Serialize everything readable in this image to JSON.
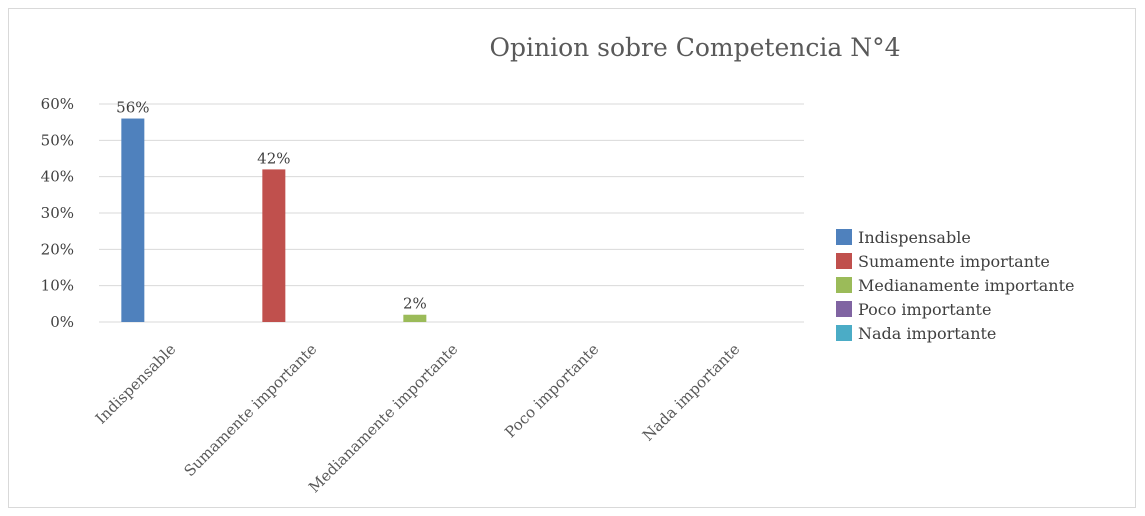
{
  "chart_data": {
    "type": "bar",
    "title": "Opinion sobre Competencia N°4",
    "categories": [
      "Indispensable",
      "Sumamente importante",
      "Medianamente importante",
      "Poco importante",
      "Nada importante"
    ],
    "values": [
      56,
      42,
      2,
      0,
      0
    ],
    "data_labels": [
      "56%",
      "42%",
      "2%",
      "",
      ""
    ],
    "colors": [
      "#4f81bd",
      "#c0504d",
      "#9bbb59",
      "#8064a2",
      "#4bacc6"
    ],
    "ylim": [
      0,
      60
    ],
    "yticks": [
      0,
      10,
      20,
      30,
      40,
      50,
      60
    ],
    "ytick_labels": [
      "0%",
      "10%",
      "20%",
      "30%",
      "40%",
      "50%",
      "60%"
    ],
    "grid": true,
    "legend_position": "right",
    "legend": [
      "Indispensable",
      "Sumamente importante",
      "Medianamente importante",
      "Poco importante",
      "Nada importante"
    ]
  }
}
